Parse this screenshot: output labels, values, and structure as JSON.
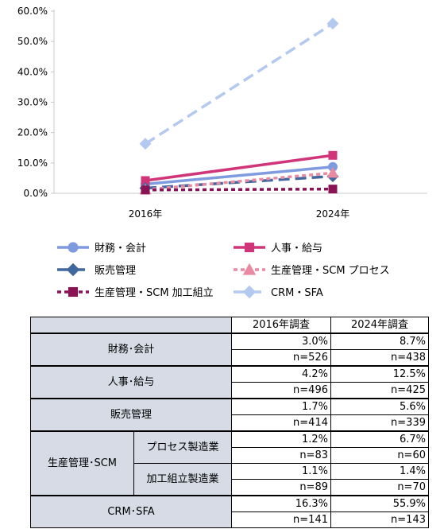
{
  "chart_data": {
    "type": "line",
    "categories": [
      "2016年",
      "2024年"
    ],
    "ylim": [
      0,
      60
    ],
    "yticks": [
      "0.0%",
      "10.0%",
      "20.0%",
      "30.0%",
      "40.0%",
      "50.0%",
      "60.0%"
    ],
    "grid": false,
    "legend_position": "bottom",
    "series": [
      {
        "name": "財務・会計",
        "values": [
          3.0,
          8.7
        ],
        "color": "#7f9be0",
        "dash": "solid",
        "marker": "circle"
      },
      {
        "name": "人事・給与",
        "values": [
          4.2,
          12.5
        ],
        "color": "#d0357a",
        "dash": "solid",
        "marker": "square"
      },
      {
        "name": "販売管理",
        "values": [
          1.7,
          5.6
        ],
        "color": "#41679f",
        "dash": "longdash",
        "marker": "diamond"
      },
      {
        "name": "生産管理・SCM プロセス",
        "values": [
          1.2,
          6.7
        ],
        "color": "#e98aa2",
        "dash": "dot",
        "marker": "triangle"
      },
      {
        "name": "生産管理・SCM 加工組立",
        "values": [
          1.1,
          1.4
        ],
        "color": "#8a1356",
        "dash": "dot",
        "marker": "square"
      },
      {
        "name": "CRM・SFA",
        "values": [
          16.3,
          55.9
        ],
        "color": "#b4c9ef",
        "dash": "longdash",
        "marker": "diamond"
      }
    ]
  },
  "table": {
    "headers": [
      "2016年調査",
      "2024年調査"
    ],
    "rows": [
      {
        "label": "財務･会計",
        "pct": [
          "3.0%",
          "8.7%"
        ],
        "n": [
          "n=526",
          "n=438"
        ]
      },
      {
        "label": "人事･給与",
        "pct": [
          "4.2%",
          "12.5%"
        ],
        "n": [
          "n=496",
          "n=425"
        ]
      },
      {
        "label": "販売管理",
        "pct": [
          "1.7%",
          "5.6%"
        ],
        "n": [
          "n=414",
          "n=339"
        ]
      },
      {
        "group": "生産管理･SCM",
        "sub": "プロセス製造業",
        "pct": [
          "1.2%",
          "6.7%"
        ],
        "n": [
          "n=83",
          "n=60"
        ]
      },
      {
        "group": "生産管理･SCM",
        "sub": "加工組立製造業",
        "pct": [
          "1.1%",
          "1.4%"
        ],
        "n": [
          "n=89",
          "n=70"
        ]
      },
      {
        "label": "CRM･SFA",
        "pct": [
          "16.3%",
          "55.9%"
        ],
        "n": [
          "n=141",
          "n=143"
        ]
      }
    ]
  }
}
